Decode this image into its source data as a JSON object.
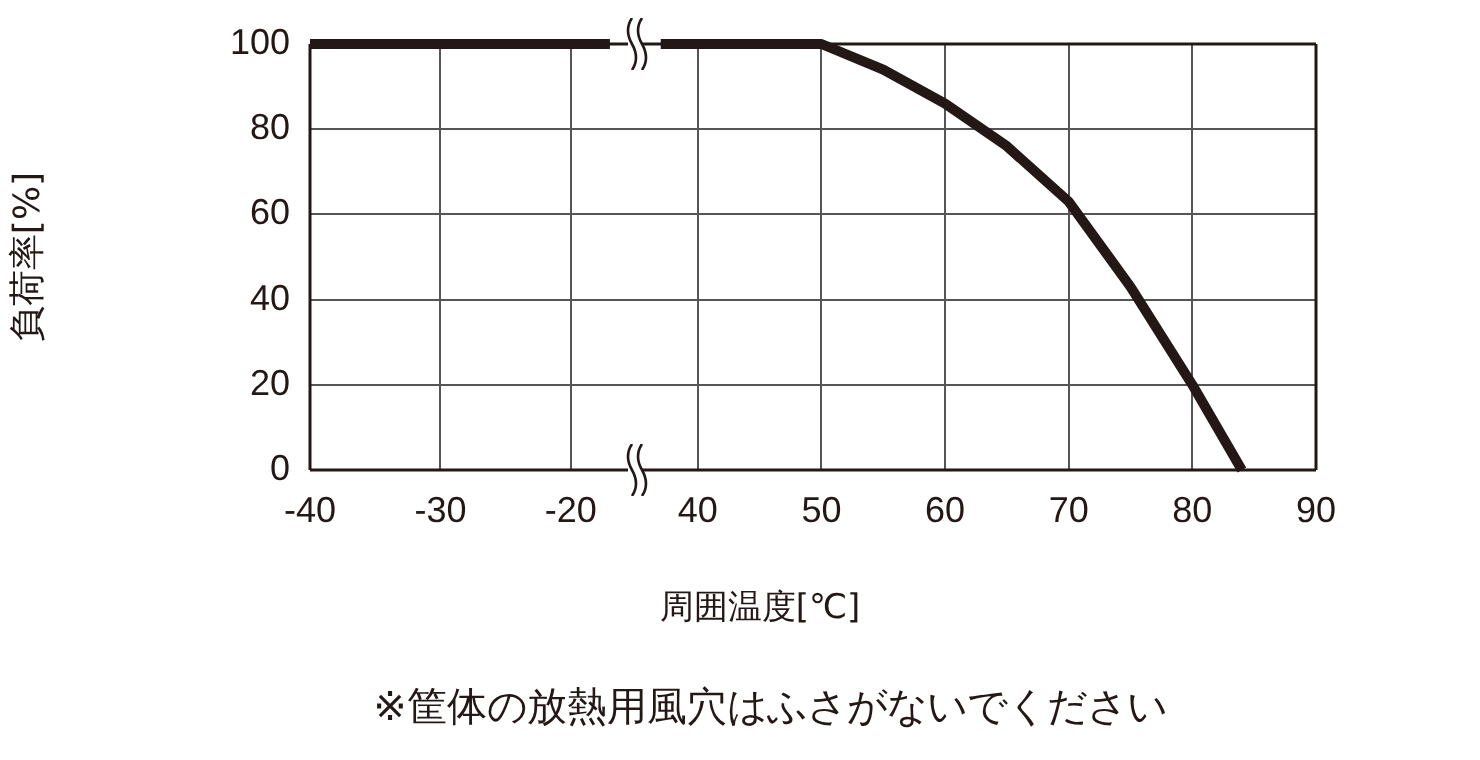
{
  "chart_data": [
    {
      "type": "line",
      "ylabel": "負荷率[%]",
      "xlabel": "周囲温度[℃]",
      "annotations": [
        "※筐体の放熱用風穴はふさがないでください"
      ],
      "xlim": [
        -40,
        -15
      ],
      "xticks": [
        -40,
        -30,
        -20
      ],
      "ylim": [
        0,
        100
      ],
      "yticks": [
        0,
        20,
        40,
        60,
        80,
        100
      ],
      "grid": true,
      "line_style": "solid",
      "series": [
        {
          "color": "#231815",
          "x": [
            -40,
            -17
          ],
          "values": [
            100,
            100
          ]
        }
      ]
    },
    {
      "type": "line",
      "xlim": [
        35,
        90
      ],
      "xticks": [
        40,
        50,
        60,
        70,
        80,
        90
      ],
      "ylim": [
        0,
        100
      ],
      "yticks": [
        0,
        20,
        40,
        60,
        80,
        100
      ],
      "grid": true,
      "tick_labels": "x",
      "line_style": "solid",
      "series": [
        {
          "color": "#231815",
          "x": [
            37,
            50,
            55,
            60,
            65,
            70,
            75,
            80,
            84
          ],
          "values": [
            100,
            100,
            94,
            86,
            76,
            63,
            43,
            20,
            0
          ]
        }
      ]
    }
  ]
}
